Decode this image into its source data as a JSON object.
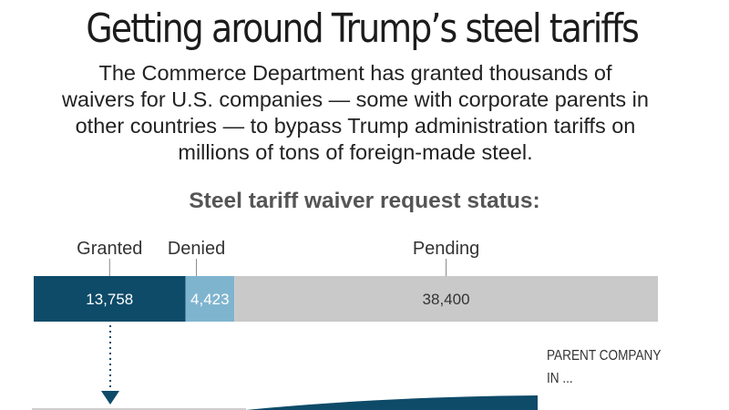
{
  "header": {
    "title": "Getting around Trump’s steel tariffs",
    "deck_lines": [
      "The Commerce Department has granted thousands of",
      "waivers for U.S. companies — some with corporate parents in",
      "other countries — to bypass Trump administration tariffs on",
      "millions of tons of foreign-made steel."
    ]
  },
  "chart_data": {
    "type": "bar",
    "orientation": "horizontal-stacked",
    "title": "Steel tariff waiver request status:",
    "categories": [
      "Granted",
      "Denied",
      "Pending"
    ],
    "values": [
      13758,
      4423,
      38400
    ],
    "value_labels": [
      "13,758",
      "4,423",
      "38,400"
    ],
    "colors": [
      "#0e4b69",
      "#7fb4cf",
      "#c9c9c9"
    ],
    "label_colors": [
      "#ffffff",
      "#ffffff",
      "#333333"
    ],
    "xlabel": "",
    "ylabel": "",
    "grid": false
  },
  "lower_panel": {
    "label_lines": [
      "PARENT COMPANY",
      "IN ..."
    ],
    "accent_color": "#0e4b69"
  }
}
